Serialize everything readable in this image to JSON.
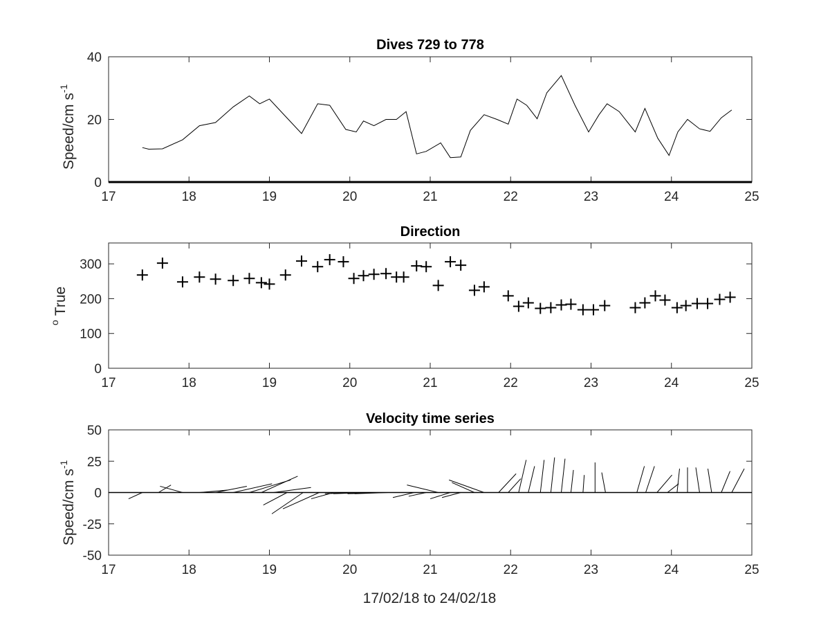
{
  "chart_data": [
    {
      "type": "line",
      "title": "Dives 729 to 778",
      "ylabel": "Speed/cm s",
      "ylabel_superscript": "-1",
      "xlim": [
        17,
        25
      ],
      "ylim": [
        0,
        40
      ],
      "xticks": [
        "17",
        "18",
        "19",
        "20",
        "21",
        "22",
        "23",
        "24",
        "25"
      ],
      "yticks": [
        "0",
        "20",
        "40"
      ],
      "x": [
        17.42,
        17.5,
        17.67,
        17.92,
        18.13,
        18.33,
        18.55,
        18.75,
        18.88,
        19.0,
        19.2,
        19.4,
        19.6,
        19.75,
        19.95,
        20.08,
        20.17,
        20.3,
        20.45,
        20.58,
        20.7,
        20.83,
        20.95,
        21.13,
        21.25,
        21.38,
        21.5,
        21.67,
        21.83,
        21.97,
        22.08,
        22.2,
        22.33,
        22.45,
        22.63,
        22.8,
        22.97,
        23.1,
        23.2,
        23.35,
        23.55,
        23.67,
        23.83,
        23.97,
        24.08,
        24.2,
        24.35,
        24.48,
        24.62,
        24.75
      ],
      "y": [
        11,
        10.5,
        10.6,
        13.5,
        18,
        19,
        24,
        27.5,
        25,
        26.5,
        21,
        15.5,
        25,
        24.5,
        16.8,
        16,
        19.5,
        18,
        20,
        20,
        22.5,
        9,
        9.8,
        12.5,
        7.8,
        8,
        16.5,
        21.5,
        20,
        18.5,
        26.5,
        24.5,
        20.2,
        28.5,
        34,
        24.5,
        16,
        21.5,
        25,
        22.5,
        16,
        23.5,
        14,
        8.5,
        16,
        20,
        17,
        16.2,
        20.5,
        23
      ]
    },
    {
      "type": "scatter",
      "marker": "+",
      "title": "Direction",
      "ylabel": "True",
      "ylabel_prefix": "o",
      "xlim": [
        17,
        25
      ],
      "ylim": [
        0,
        360
      ],
      "xticks": [
        "17",
        "18",
        "19",
        "20",
        "21",
        "22",
        "23",
        "24",
        "25"
      ],
      "yticks": [
        "0",
        "100",
        "200",
        "300"
      ],
      "x": [
        17.42,
        17.67,
        17.92,
        18.13,
        18.33,
        18.55,
        18.75,
        18.9,
        19.0,
        19.2,
        19.4,
        19.6,
        19.75,
        19.92,
        20.05,
        20.17,
        20.3,
        20.45,
        20.58,
        20.67,
        20.83,
        20.95,
        21.1,
        21.25,
        21.38,
        21.55,
        21.67,
        21.97,
        22.1,
        22.22,
        22.37,
        22.5,
        22.63,
        22.75,
        22.9,
        23.03,
        23.17,
        23.55,
        23.67,
        23.8,
        23.92,
        24.07,
        24.18,
        24.32,
        24.45,
        24.6,
        24.73
      ],
      "y": [
        268,
        302,
        248,
        262,
        256,
        252,
        258,
        246,
        242,
        268,
        308,
        292,
        312,
        306,
        258,
        266,
        270,
        272,
        262,
        262,
        294,
        292,
        238,
        306,
        296,
        224,
        234,
        208,
        178,
        188,
        172,
        174,
        182,
        184,
        168,
        168,
        180,
        174,
        188,
        208,
        196,
        174,
        180,
        186,
        186,
        198,
        204
      ]
    },
    {
      "type": "quiver",
      "title": "Velocity time series",
      "ylabel": "Speed/cm s",
      "ylabel_superscript": "-1",
      "xlabel": "17/02/18 to 24/02/18",
      "xlim": [
        17,
        25
      ],
      "ylim": [
        -50,
        50
      ],
      "xticks": [
        "17",
        "18",
        "19",
        "20",
        "21",
        "22",
        "23",
        "24",
        "25"
      ],
      "yticks": [
        "-50",
        "-25",
        "0",
        "25",
        "50"
      ],
      "x": [
        17.42,
        17.62,
        17.92,
        18.13,
        18.33,
        18.55,
        18.75,
        18.9,
        19.05,
        19.22,
        19.42,
        19.62,
        19.8,
        19.95,
        20.08,
        20.2,
        20.33,
        20.48,
        20.62,
        20.8,
        20.95,
        21.1,
        21.25,
        21.38,
        21.55,
        21.67,
        21.85,
        21.97,
        22.1,
        22.22,
        22.37,
        22.5,
        22.63,
        22.75,
        22.9,
        23.05,
        23.18,
        23.57,
        23.68,
        23.82,
        23.95,
        24.07,
        24.2,
        24.35,
        24.5,
        24.62,
        24.75
      ],
      "u": [
        -11,
        10,
        -18,
        23,
        25,
        31,
        33,
        29,
        30,
        -19,
        -25,
        -29,
        -18,
        -20,
        -25,
        -26,
        -23,
        -27,
        -17,
        -17,
        -14,
        -25,
        -16,
        -15,
        -18,
        -28,
        14,
        10,
        6,
        5,
        3,
        3,
        3,
        2,
        1,
        0,
        -3,
        6,
        7,
        12,
        9,
        2,
        0,
        -3,
        -3,
        7,
        10
      ],
      "v": [
        -5,
        6,
        5,
        2,
        5,
        7,
        10,
        13,
        4,
        -10,
        -17,
        -13,
        -5,
        0,
        -1,
        -1,
        -1,
        -1,
        0,
        -4,
        -3,
        6,
        -5,
        -4,
        8,
        10,
        15,
        11,
        26,
        21,
        26,
        28,
        27,
        18,
        14,
        24,
        16,
        21,
        21,
        14,
        7,
        19,
        20,
        20,
        19,
        17,
        19
      ]
    }
  ]
}
